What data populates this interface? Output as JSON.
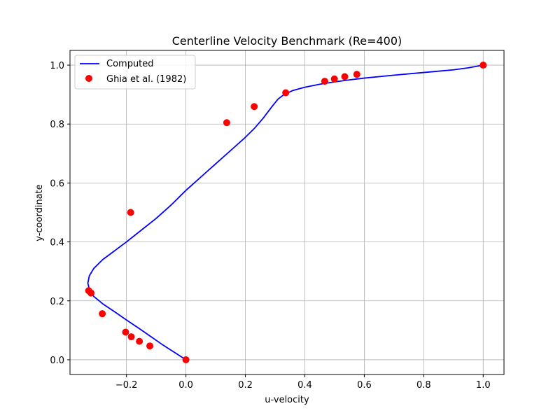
{
  "chart_data": {
    "type": "line",
    "title": "Centerline Velocity Benchmark (Re=400)",
    "xlabel": "u-velocity",
    "ylabel": "y-coordinate",
    "xlim": [
      -0.39,
      1.07
    ],
    "ylim": [
      -0.05,
      1.05
    ],
    "grid": true,
    "legend_position": "top-left",
    "x_ticks": [
      -0.2,
      0.0,
      0.2,
      0.4,
      0.6,
      0.8,
      1.0
    ],
    "x_tick_labels": [
      "−0.2",
      "0.0",
      "0.2",
      "0.4",
      "0.6",
      "0.8",
      "1.0"
    ],
    "y_ticks": [
      0.0,
      0.2,
      0.4,
      0.6,
      0.8,
      1.0
    ],
    "y_tick_labels": [
      "0.0",
      "0.2",
      "0.4",
      "0.6",
      "0.8",
      "1.0"
    ],
    "series": [
      {
        "name": "Computed",
        "kind": "line",
        "color": "#0000ff",
        "x": [
          0.0,
          -0.04,
          -0.08,
          -0.12,
          -0.16,
          -0.2,
          -0.24,
          -0.28,
          -0.31,
          -0.325,
          -0.33,
          -0.325,
          -0.31,
          -0.28,
          -0.24,
          -0.2,
          -0.15,
          -0.1,
          -0.05,
          0.0,
          0.05,
          0.1,
          0.15,
          0.2,
          0.23,
          0.26,
          0.29,
          0.31,
          0.33,
          0.36,
          0.4,
          0.45,
          0.5,
          0.55,
          0.6,
          0.7,
          0.8,
          0.9,
          0.95,
          1.0
        ],
        "y": [
          0.0,
          0.026,
          0.052,
          0.08,
          0.108,
          0.135,
          0.163,
          0.19,
          0.215,
          0.24,
          0.26,
          0.285,
          0.31,
          0.34,
          0.37,
          0.4,
          0.44,
          0.48,
          0.525,
          0.575,
          0.62,
          0.665,
          0.71,
          0.755,
          0.785,
          0.82,
          0.86,
          0.885,
          0.9,
          0.914,
          0.925,
          0.935,
          0.943,
          0.95,
          0.956,
          0.966,
          0.975,
          0.984,
          0.991,
          1.0
        ]
      },
      {
        "name": "Ghia et al. (1982)",
        "kind": "scatter",
        "color": "#ff0000",
        "x": [
          0.0,
          -0.1215,
          -0.1566,
          -0.1838,
          -0.2029,
          -0.2814,
          -0.3272,
          -0.3193,
          -0.186,
          0.1373,
          0.2298,
          0.3357,
          0.4669,
          0.4994,
          0.5343,
          0.575,
          1.0
        ],
        "y": [
          0.0,
          0.0469,
          0.0625,
          0.0781,
          0.0938,
          0.1563,
          0.2344,
          0.2266,
          0.5,
          0.8047,
          0.8594,
          0.9063,
          0.9453,
          0.9531,
          0.9609,
          0.9688,
          1.0
        ]
      }
    ]
  }
}
